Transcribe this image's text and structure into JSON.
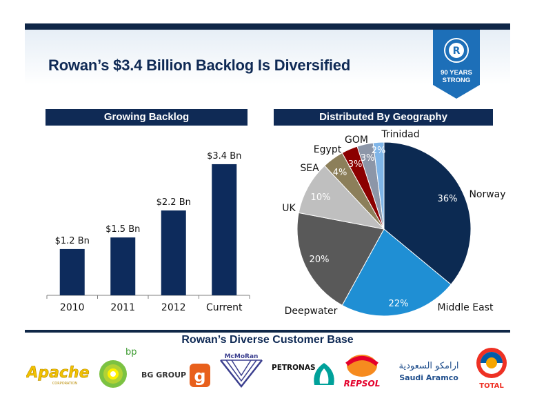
{
  "title": "Rowan’s $3.4 Billion Backlog Is Diversified",
  "badge": {
    "line1": "90 YEARS",
    "line2": "STRONG",
    "emblem": "R",
    "icon": "rowan-emblem-icon"
  },
  "colors": {
    "navy": "#0f2a55",
    "bar": "#0d2b5c"
  },
  "customers_title": "Rowan’s Diverse Customer Base",
  "chart_data": [
    {
      "type": "bar",
      "title": "Growing Backlog",
      "categories": [
        "2010",
        "2011",
        "2012",
        "Current"
      ],
      "values": [
        1.2,
        1.5,
        2.2,
        3.4
      ],
      "data_labels": [
        "$1.2 Bn",
        "$1.5 Bn",
        "$2.2 Bn",
        "$3.4 Bn"
      ],
      "xlabel": "",
      "ylabel": "",
      "ylim": [
        0,
        3.9
      ],
      "grid": false
    },
    {
      "type": "pie",
      "title": "Distributed By Geography",
      "slices": [
        {
          "label": "Norway",
          "value": 36,
          "pct": "36%",
          "color": "#0c2a52"
        },
        {
          "label": "Middle East",
          "value": 22,
          "pct": "22%",
          "color": "#1f8fd4"
        },
        {
          "label": "Deepwater",
          "value": 20,
          "pct": "20%",
          "color": "#595959"
        },
        {
          "label": "UK",
          "value": 10,
          "pct": "10%",
          "color": "#bfbfbf"
        },
        {
          "label": "SEA",
          "value": 4,
          "pct": "4%",
          "color": "#8c7f5a"
        },
        {
          "label": "Egypt",
          "value": 3,
          "pct": "3%",
          "color": "#8b0000"
        },
        {
          "label": "GOM",
          "value": 3,
          "pct": "3%",
          "color": "#8c96a8"
        },
        {
          "label": "Trinidad",
          "value": 2,
          "pct": "2%",
          "color": "#7fb5e8"
        }
      ]
    }
  ],
  "logos": [
    {
      "name": "Apache",
      "text": "Apache",
      "sub": "CORPORATION"
    },
    {
      "name": "bp",
      "text": "bp"
    },
    {
      "name": "BG GROUP",
      "text": "BG GROUP"
    },
    {
      "name": "McMoRan",
      "text": "McMoRan"
    },
    {
      "name": "PETRONAS",
      "text": "PETRONAS"
    },
    {
      "name": "REPSOL",
      "text": "REPSOL"
    },
    {
      "name": "Saudi Aramco",
      "text": "Saudi Aramco",
      "arabic": "ارامكو السعودية"
    },
    {
      "name": "TOTAL",
      "text": "TOTAL"
    }
  ]
}
